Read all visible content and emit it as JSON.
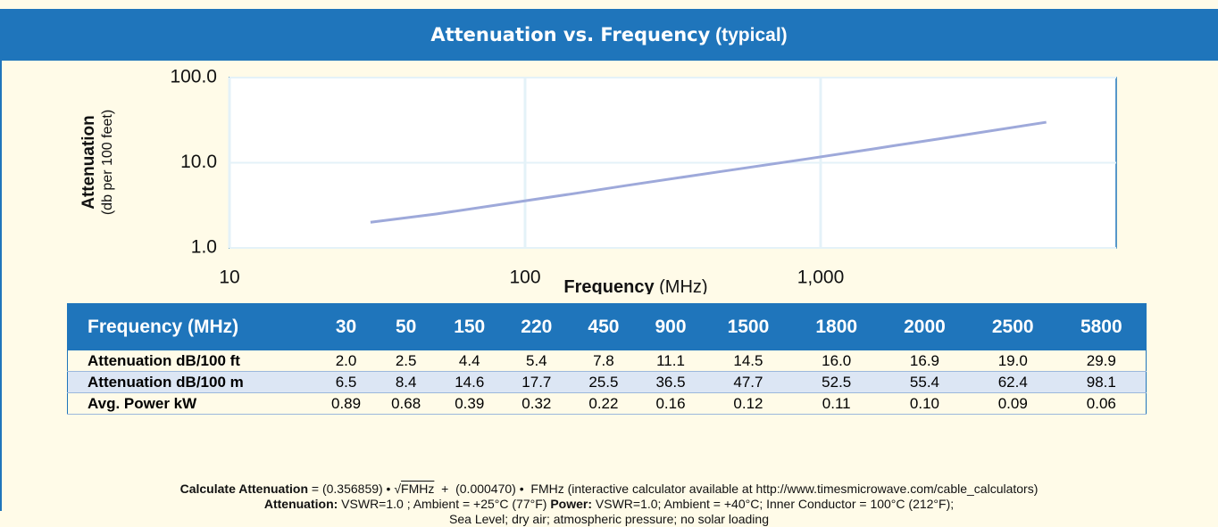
{
  "chart_data": {
    "type": "line",
    "title": "Attenuation vs. Frequency",
    "title_suffix": "(typical)",
    "y_label": "Attenuation",
    "y_label_sub": "(db per 100 feet)",
    "x_label": "Frequency",
    "x_label_sub": "(MHz)",
    "log_x": true,
    "log_y": true,
    "grid": true,
    "x": [
      30,
      50,
      150,
      220,
      450,
      900,
      1500,
      1800,
      2000,
      2500,
      5800
    ],
    "series": [
      {
        "color": "#9ea9da",
        "values": [
          2.0,
          2.5,
          4.4,
          5.4,
          7.8,
          11.1,
          14.5,
          16.0,
          16.9,
          19.0,
          29.9
        ]
      }
    ],
    "xlim": [
      10,
      10000
    ],
    "xticks": [
      10,
      100,
      {
        "value": 1000,
        "label": "1,000"
      }
    ],
    "ylim": [
      1,
      100
    ],
    "yticks": [
      {
        "value": 1,
        "label": "1.0"
      },
      {
        "value": 10,
        "label": "10.0"
      },
      {
        "value": 100,
        "label": "100.0"
      }
    ]
  },
  "table": {
    "header": [
      "Frequency (MHz)",
      "30",
      "50",
      "150",
      "220",
      "450",
      "900",
      "1500",
      "1800",
      "2000",
      "2500",
      "5800"
    ],
    "rows": [
      [
        "Attenuation dB/100 ft",
        "2.0",
        "2.5",
        "4.4",
        "5.4",
        "7.8",
        "11.1",
        "14.5",
        "16.0",
        "16.9",
        "19.0",
        "29.9"
      ],
      [
        "Attenuation dB/100 m",
        "6.5",
        "8.4",
        "14.6",
        "17.7",
        "25.5",
        "36.5",
        "47.7",
        "52.5",
        "55.4",
        "62.4",
        "98.1"
      ],
      [
        "Avg. Power kW",
        "0.89",
        "0.68",
        "0.39",
        "0.32",
        "0.22",
        "0.16",
        "0.12",
        "0.11",
        "0.10",
        "0.09",
        "0.06"
      ]
    ]
  },
  "footer": {
    "lines": [
      [
        {
          "text": "Calculate Attenuation",
          "bold": true
        },
        {
          "text": " = (0.356859) • √"
        },
        {
          "text": "FMHz",
          "overline": true
        },
        {
          "text": "  +  (0.000470) •  FMHz (interactive calculator available at http://www.timesmicrowave.com/cable_calculators)"
        }
      ],
      [
        {
          "text": "Attenuation:",
          "bold": true
        },
        {
          "text": " VSWR=1.0 ; Ambient = +25°C (77°F) "
        },
        {
          "text": "Power:",
          "bold": true
        },
        {
          "text": " VSWR=1.0; Ambient = +40°C; Inner Conductor = 100°C (212°F);"
        }
      ],
      [
        {
          "text": "Sea Level; dry air; atmospheric pressure; no solar loading"
        }
      ]
    ]
  }
}
